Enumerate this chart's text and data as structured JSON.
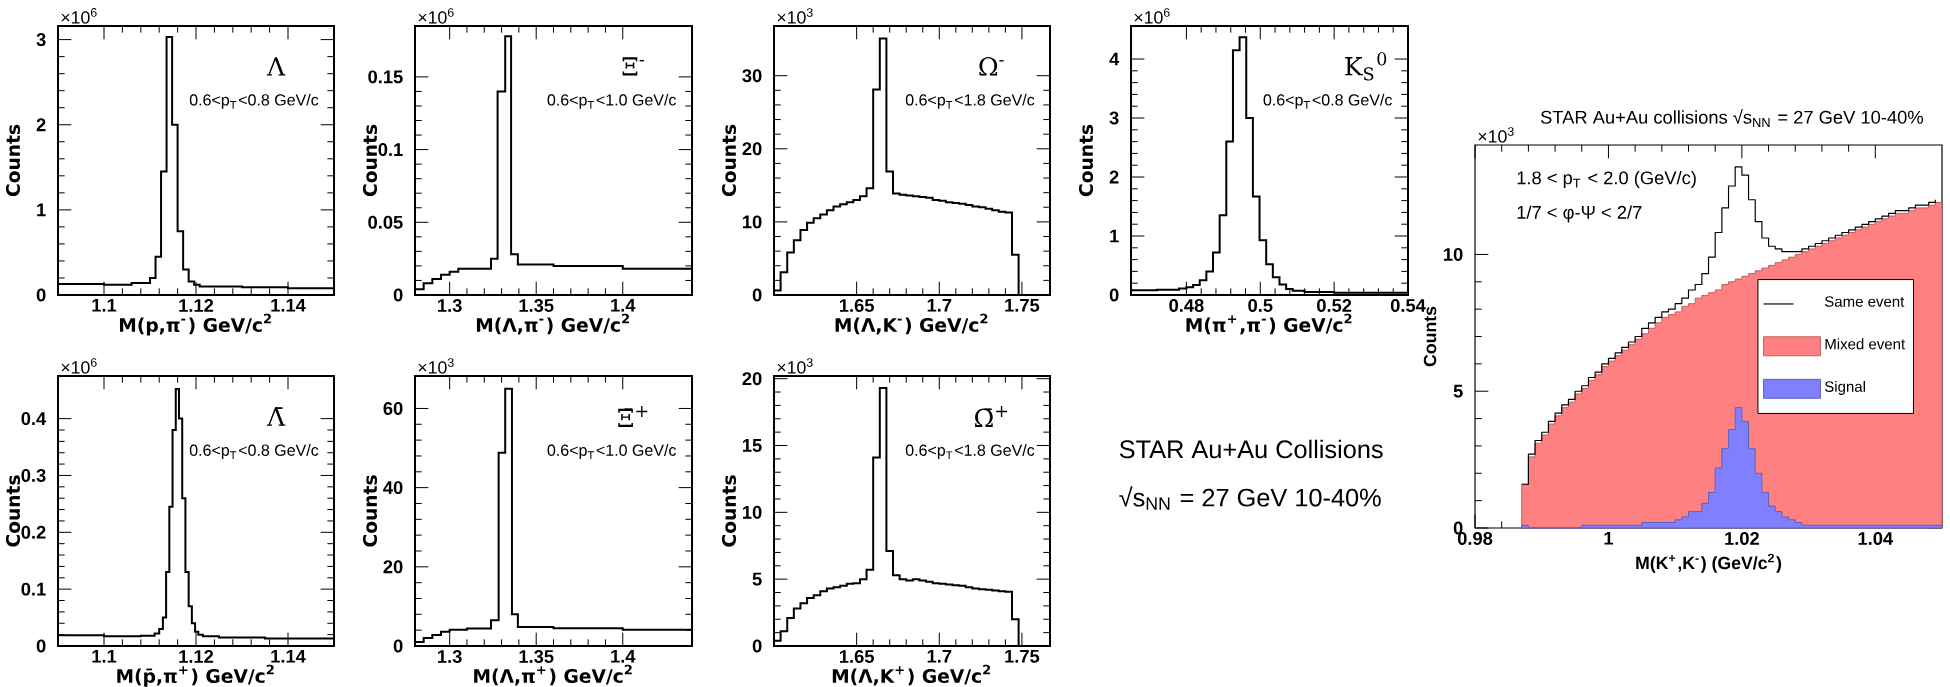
{
  "chart_data": [
    {
      "type": "histogram",
      "title": "Λ",
      "subtitle": "0.6<p$_{T}$<0.8 GeV/c",
      "xlabel": "M(p,π$^{-}$) GeV/c$^{2}$",
      "ylabel": "Counts",
      "annotations": [
        "×10$^{6}$"
      ],
      "xlim": [
        1.09,
        1.15
      ],
      "ylim": [
        0,
        3.16
      ],
      "xticks": [
        1.1,
        1.12,
        1.14
      ],
      "yticks": [
        0,
        1,
        2,
        3
      ],
      "bins": [
        1.09,
        1.1,
        1.106,
        1.11,
        1.1112,
        1.1124,
        1.1136,
        1.1148,
        1.116,
        1.1172,
        1.1184,
        1.1196,
        1.1208,
        1.13,
        1.14,
        1.15
      ],
      "values": [
        0.13,
        0.12,
        0.14,
        0.2,
        0.45,
        1.45,
        3.03,
        2.0,
        0.75,
        0.3,
        0.16,
        0.12,
        0.1,
        0.09,
        0.08
      ]
    },
    {
      "type": "histogram",
      "title": "Ξ$^{-}$",
      "subtitle": "0.6<p$_{T}$<1.0 GeV/c",
      "xlabel": "M(Λ,π$^{-}$) GeV/c$^{2}$",
      "ylabel": "Counts",
      "annotations": [
        "×10$^{6}$"
      ],
      "xlim": [
        1.28,
        1.44
      ],
      "ylim": [
        0,
        0.185
      ],
      "xticks": [
        1.3,
        1.35,
        1.4
      ],
      "yticks": [
        0,
        0.05,
        0.1,
        0.15
      ],
      "bins": [
        1.28,
        1.285,
        1.29,
        1.295,
        1.3,
        1.305,
        1.31,
        1.3239,
        1.3277,
        1.3321,
        1.3355,
        1.3394,
        1.36,
        1.4,
        1.44
      ],
      "values": [
        0.004,
        0.008,
        0.011,
        0.014,
        0.016,
        0.018,
        0.018,
        0.025,
        0.14,
        0.178,
        0.028,
        0.021,
        0.02,
        0.018
      ]
    },
    {
      "type": "histogram",
      "title": "Ω$^{-}$",
      "subtitle": "0.6<p$_{T}$<1.8 GeV/c",
      "xlabel": "M(Λ,K$^{-}$) GeV/c$^{2}$",
      "ylabel": "Counts",
      "annotations": [
        "×10$^{3}$"
      ],
      "xlim": [
        1.6,
        1.767
      ],
      "ylim": [
        0,
        36.8
      ],
      "xticks": [
        1.65,
        1.7,
        1.75
      ],
      "yticks": [
        0,
        10,
        20,
        30
      ],
      "bins": [
        1.6,
        1.604,
        1.608,
        1.612,
        1.616,
        1.62,
        1.624,
        1.628,
        1.632,
        1.636,
        1.64,
        1.644,
        1.648,
        1.652,
        1.656,
        1.66,
        1.664,
        1.668,
        1.672,
        1.676,
        1.68,
        1.684,
        1.688,
        1.692,
        1.696,
        1.7,
        1.704,
        1.708,
        1.712,
        1.716,
        1.72,
        1.724,
        1.728,
        1.732,
        1.736,
        1.74,
        1.744,
        1.748
      ],
      "values": [
        0.6,
        3.1,
        5.8,
        7.5,
        8.9,
        9.9,
        10.5,
        11.0,
        11.6,
        12.1,
        12.4,
        12.7,
        13.0,
        13.5,
        14.6,
        28.1,
        35.1,
        16.9,
        13.9,
        13.7,
        13.6,
        13.5,
        13.4,
        13.3,
        13.0,
        12.9,
        12.7,
        12.6,
        12.5,
        12.3,
        12.1,
        12.0,
        11.8,
        11.6,
        11.4,
        11.3,
        5.5
      ]
    },
    {
      "type": "histogram",
      "title": "K$_{S}$$^{0}$",
      "subtitle": "0.6<p$_{T}$<0.8 GeV/c",
      "xlabel": "M(π$^{+}$,π$^{-}$) GeV/c$^{2}$",
      "ylabel": "Counts",
      "annotations": [
        "×10$^{6}$"
      ],
      "xlim": [
        0.465,
        0.54
      ],
      "ylim": [
        0,
        4.56
      ],
      "xticks": [
        0.48,
        0.5,
        0.52,
        0.54
      ],
      "yticks": [
        0,
        1,
        2,
        3,
        4
      ],
      "bins": [
        0.465,
        0.472,
        0.478,
        0.48,
        0.4818,
        0.4836,
        0.4854,
        0.4872,
        0.489,
        0.4908,
        0.4926,
        0.4944,
        0.4962,
        0.498,
        0.4998,
        0.5016,
        0.5034,
        0.5052,
        0.507,
        0.5088,
        0.512,
        0.52,
        0.53,
        0.54
      ],
      "values": [
        0.08,
        0.09,
        0.11,
        0.13,
        0.17,
        0.25,
        0.4,
        0.72,
        1.35,
        2.6,
        4.15,
        4.37,
        3.0,
        1.67,
        0.93,
        0.52,
        0.3,
        0.18,
        0.1,
        0.07,
        0.05,
        0.04,
        0.04
      ]
    },
    {
      "type": "histogram",
      "title": "Λ̄",
      "subtitle": "0.6<p$_{T}$<0.8 GeV/c",
      "xlabel": "M(p̄,π$^{+}$) GeV/c$^{2}$",
      "ylabel": "Counts",
      "annotations": [
        "×10$^{6}$"
      ],
      "xlim": [
        1.09,
        1.15
      ],
      "ylim": [
        0,
        0.475
      ],
      "xticks": [
        1.1,
        1.12,
        1.14
      ],
      "yticks": [
        0,
        0.1,
        0.2,
        0.3,
        0.4
      ],
      "bins": [
        1.09,
        1.1,
        1.108,
        1.111,
        1.112,
        1.1128,
        1.1135,
        1.1142,
        1.1149,
        1.1156,
        1.1163,
        1.117,
        1.1177,
        1.1184,
        1.1191,
        1.1198,
        1.1205,
        1.1215,
        1.125,
        1.135,
        1.15
      ],
      "values": [
        0.019,
        0.017,
        0.018,
        0.022,
        0.03,
        0.05,
        0.13,
        0.245,
        0.38,
        0.452,
        0.4,
        0.26,
        0.13,
        0.07,
        0.04,
        0.025,
        0.02,
        0.017,
        0.015,
        0.013
      ]
    },
    {
      "type": "histogram",
      "title": "Ξ̄$^{+}$",
      "subtitle": "0.6<p$_{T}$<1.0 GeV/c",
      "xlabel": "M(Λ,π$^{+}$) GeV/c$^{2}$",
      "ylabel": "Counts",
      "annotations": [
        "×10$^{3}$"
      ],
      "xlim": [
        1.28,
        1.44
      ],
      "ylim": [
        0,
        68.2
      ],
      "xticks": [
        1.3,
        1.35,
        1.4
      ],
      "yticks": [
        0,
        20,
        40,
        60
      ],
      "bins": [
        1.28,
        1.285,
        1.29,
        1.295,
        1.3,
        1.31,
        1.3239,
        1.3283,
        1.3321,
        1.336,
        1.3394,
        1.36,
        1.4,
        1.44
      ],
      "values": [
        1.0,
        2.0,
        2.8,
        3.6,
        4.1,
        4.4,
        6.5,
        48.8,
        65,
        8,
        4.8,
        4.5,
        4.1
      ]
    },
    {
      "type": "histogram",
      "title": "Ω̄$^{+}$",
      "subtitle": "0.6<p$_{T}$<1.8 GeV/c",
      "xlabel": "M(Λ,K$^{+}$) GeV/c$^{2}$",
      "ylabel": "Counts",
      "annotations": [
        "×10$^{3}$"
      ],
      "xlim": [
        1.6,
        1.767
      ],
      "ylim": [
        0,
        20.2
      ],
      "xticks": [
        1.65,
        1.7,
        1.75
      ],
      "yticks": [
        0,
        5,
        10,
        15,
        20
      ],
      "bins": [
        1.6,
        1.604,
        1.608,
        1.612,
        1.616,
        1.62,
        1.624,
        1.628,
        1.632,
        1.636,
        1.64,
        1.644,
        1.648,
        1.652,
        1.656,
        1.66,
        1.664,
        1.668,
        1.672,
        1.676,
        1.68,
        1.684,
        1.688,
        1.692,
        1.696,
        1.7,
        1.704,
        1.708,
        1.712,
        1.716,
        1.72,
        1.724,
        1.728,
        1.732,
        1.736,
        1.74,
        1.744,
        1.748
      ],
      "values": [
        0.4,
        1.1,
        2.1,
        2.8,
        3.2,
        3.6,
        3.8,
        4.1,
        4.3,
        4.4,
        4.5,
        4.65,
        4.7,
        5.0,
        5.7,
        14.1,
        19.3,
        7.1,
        5.3,
        5.0,
        4.9,
        5.0,
        4.9,
        4.8,
        4.7,
        4.65,
        4.6,
        4.55,
        4.5,
        4.4,
        4.3,
        4.25,
        4.2,
        4.15,
        4.1,
        4.05,
        2.0
      ]
    },
    {
      "type": "other",
      "annotations": [
        "STAR Au+Au Collisions",
        "√s$_{NN}$ = 27 GeV 10-40%"
      ]
    },
    {
      "type": "histogram",
      "title": "STAR Au+Au collisions √s$_{NN}$ = 27 GeV 10-40%",
      "xlabel": "M(K$^{+}$,K$^{-}$) (GeV/c$^{2}$)",
      "ylabel": "Counts",
      "annotations": [
        "×10$^{3}$",
        "1.8 < p$_{T}$ < 2.0 (GeV/c)",
        "1/7 < φ-Ψ < 2/7"
      ],
      "xlim": [
        0.98,
        1.05
      ],
      "ylim": [
        0,
        14
      ],
      "xticks": [
        0.98,
        1,
        1.02,
        1.04
      ],
      "yticks": [
        0,
        5,
        10
      ],
      "legend": "right",
      "bins": [
        0.987,
        0.988,
        0.989,
        0.99,
        0.991,
        0.992,
        0.993,
        0.994,
        0.995,
        0.996,
        0.997,
        0.998,
        0.999,
        1.0,
        1.001,
        1.002,
        1.003,
        1.004,
        1.005,
        1.006,
        1.007,
        1.008,
        1.009,
        1.01,
        1.011,
        1.012,
        1.013,
        1.014,
        1.015,
        1.016,
        1.017,
        1.018,
        1.019,
        1.02,
        1.021,
        1.022,
        1.023,
        1.024,
        1.025,
        1.026,
        1.027,
        1.028,
        1.029,
        1.03,
        1.031,
        1.032,
        1.033,
        1.034,
        1.035,
        1.036,
        1.037,
        1.038,
        1.039,
        1.04,
        1.041,
        1.042,
        1.043,
        1.044,
        1.045,
        1.046,
        1.047,
        1.048,
        1.049,
        1.05
      ],
      "series": [
        {
          "name": "Same event",
          "type": "step",
          "color": "#000000",
          "x": [
            0.987,
            0.988,
            0.989,
            0.99,
            0.991,
            0.992,
            0.993,
            0.994,
            0.995,
            0.996,
            0.997,
            0.998,
            0.999,
            1.0,
            1.001,
            1.002,
            1.003,
            1.004,
            1.005,
            1.006,
            1.007,
            1.008,
            1.009,
            1.01,
            1.011,
            1.012,
            1.013,
            1.014,
            1.015,
            1.016,
            1.017,
            1.018,
            1.019,
            1.02,
            1.021,
            1.022,
            1.023,
            1.024,
            1.025,
            1.026,
            1.027,
            1.028,
            1.029,
            1.03,
            1.031,
            1.032,
            1.033,
            1.034,
            1.035,
            1.036,
            1.037,
            1.038,
            1.039,
            1.04,
            1.041,
            1.042,
            1.043,
            1.044,
            1.045,
            1.046,
            1.047,
            1.048,
            1.049
          ],
          "values": [
            1.6,
            2.7,
            3.2,
            3.5,
            3.9,
            4.2,
            4.5,
            4.7,
            5.0,
            5.2,
            5.5,
            5.7,
            6.0,
            6.2,
            6.4,
            6.6,
            6.8,
            7.0,
            7.3,
            7.5,
            7.7,
            7.9,
            8.0,
            8.2,
            8.4,
            8.7,
            8.9,
            9.3,
            9.9,
            10.8,
            11.7,
            12.5,
            13.2,
            12.9,
            12.0,
            11.2,
            10.6,
            10.3,
            10.2,
            10.1,
            10.1,
            10.1,
            10.2,
            10.3,
            10.4,
            10.5,
            10.6,
            10.7,
            10.8,
            10.9,
            11.0,
            11.1,
            11.2,
            11.3,
            11.4,
            11.5,
            11.6,
            11.6,
            11.7,
            11.8,
            11.8,
            11.9,
            12.0
          ]
        },
        {
          "name": "Mixed event",
          "color": "#ff8080",
          "values": [
            1.6,
            2.6,
            3.1,
            3.4,
            3.8,
            4.1,
            4.4,
            4.6,
            4.9,
            5.1,
            5.4,
            5.6,
            5.9,
            6.1,
            6.3,
            6.5,
            6.7,
            6.9,
            7.1,
            7.3,
            7.5,
            7.7,
            7.8,
            7.9,
            8.1,
            8.2,
            8.4,
            8.5,
            8.6,
            8.7,
            8.9,
            9.0,
            9.1,
            9.2,
            9.3,
            9.4,
            9.5,
            9.6,
            9.7,
            9.8,
            9.9,
            10.0,
            10.1,
            10.2,
            10.3,
            10.4,
            10.5,
            10.6,
            10.7,
            10.8,
            10.9,
            11.0,
            11.1,
            11.2,
            11.3,
            11.4,
            11.5,
            11.5,
            11.6,
            11.7,
            11.7,
            11.8,
            11.9
          ]
        },
        {
          "name": "Signal",
          "color": "#8080ff",
          "values": [
            0.1,
            0,
            0,
            0,
            0,
            0,
            0,
            0,
            0,
            0.1,
            0.1,
            0.1,
            0.1,
            0.1,
            0.1,
            0.1,
            0.1,
            0.1,
            0.2,
            0.2,
            0.2,
            0.2,
            0.2,
            0.3,
            0.4,
            0.6,
            0.6,
            0.9,
            1.3,
            2.2,
            2.9,
            3.6,
            4.4,
            3.9,
            2.9,
            2.0,
            1.3,
            0.8,
            0.6,
            0.4,
            0.3,
            0.2,
            0.1,
            0.1,
            0.1,
            0.1,
            0.1,
            0.1,
            0.1,
            0.1,
            0.1,
            0.1,
            0.1,
            0.1,
            0.1,
            0.1,
            0.1,
            0.1,
            0.1,
            0.1,
            0.1,
            0.1,
            0.1
          ]
        }
      ]
    }
  ]
}
